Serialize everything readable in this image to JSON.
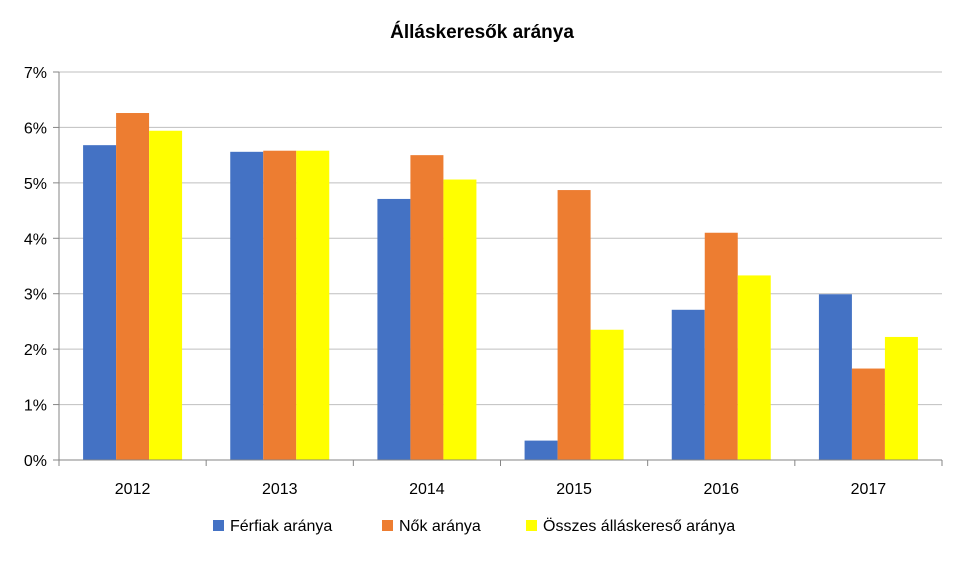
{
  "chart_data": {
    "type": "bar",
    "title": "Álláskeresők aránya",
    "xlabel": "",
    "ylabel": "",
    "categories": [
      "2012",
      "2013",
      "2014",
      "2015",
      "2016",
      "2017"
    ],
    "ylim": [
      0,
      7
    ],
    "yticks": [
      "0%",
      "1%",
      "2%",
      "3%",
      "4%",
      "5%",
      "6%",
      "7%"
    ],
    "grid": true,
    "legend": "bottom",
    "series": [
      {
        "name": "Férfiak aránya",
        "color": "#4472C4",
        "values": [
          5.68,
          5.56,
          4.71,
          0.35,
          2.71,
          2.99
        ]
      },
      {
        "name": "Nők aránya",
        "color": "#ED7D31",
        "values": [
          6.26,
          5.58,
          5.5,
          4.87,
          4.1,
          1.65
        ]
      },
      {
        "name": "Összes álláskereső aránya",
        "color": "#FFFF00",
        "values": [
          5.94,
          5.58,
          5.06,
          2.35,
          3.33,
          2.22
        ]
      }
    ]
  }
}
